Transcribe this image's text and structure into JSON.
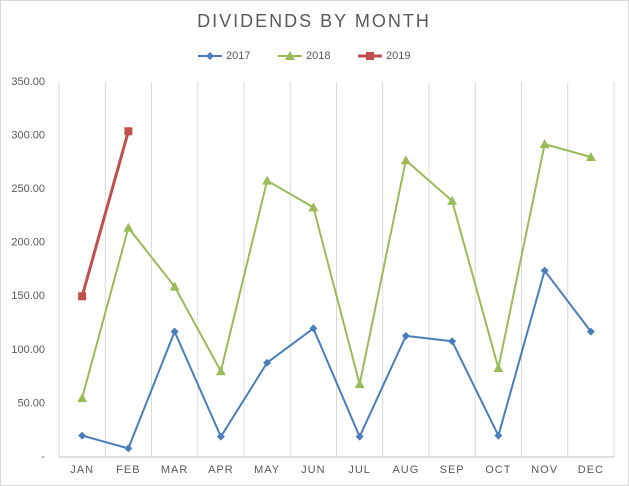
{
  "chart_data": {
    "type": "line",
    "title": "DIVIDENDS BY MONTH",
    "categories": [
      "JAN",
      "FEB",
      "MAR",
      "APR",
      "MAY",
      "JUN",
      "JUL",
      "AUG",
      "SEP",
      "OCT",
      "NOV",
      "DEC"
    ],
    "series": [
      {
        "name": "2017",
        "color": "#4a7ebb",
        "marker": "diamond",
        "values": [
          20,
          8,
          117,
          19,
          88,
          120,
          19,
          113,
          108,
          20,
          174,
          117
        ]
      },
      {
        "name": "2018",
        "color": "#9bbb59",
        "marker": "triangle",
        "values": [
          55,
          214,
          159,
          80,
          258,
          233,
          68,
          277,
          239,
          83,
          292,
          280
        ]
      },
      {
        "name": "2019",
        "color": "#c0504d",
        "marker": "square",
        "values": [
          150,
          304,
          null,
          null,
          null,
          null,
          null,
          null,
          null,
          null,
          null,
          null
        ]
      }
    ],
    "ylim": [
      0,
      350
    ],
    "yticks": [
      {
        "value": 0,
        "label": "-"
      },
      {
        "value": 50,
        "label": "50.00"
      },
      {
        "value": 100,
        "label": "100.00"
      },
      {
        "value": 150,
        "label": "150.00"
      },
      {
        "value": 200,
        "label": "200.00"
      },
      {
        "value": 250,
        "label": "250.00"
      },
      {
        "value": 300,
        "label": "300.00"
      },
      {
        "value": 350,
        "label": "350.00"
      }
    ],
    "grid": "x",
    "legend": "top"
  }
}
